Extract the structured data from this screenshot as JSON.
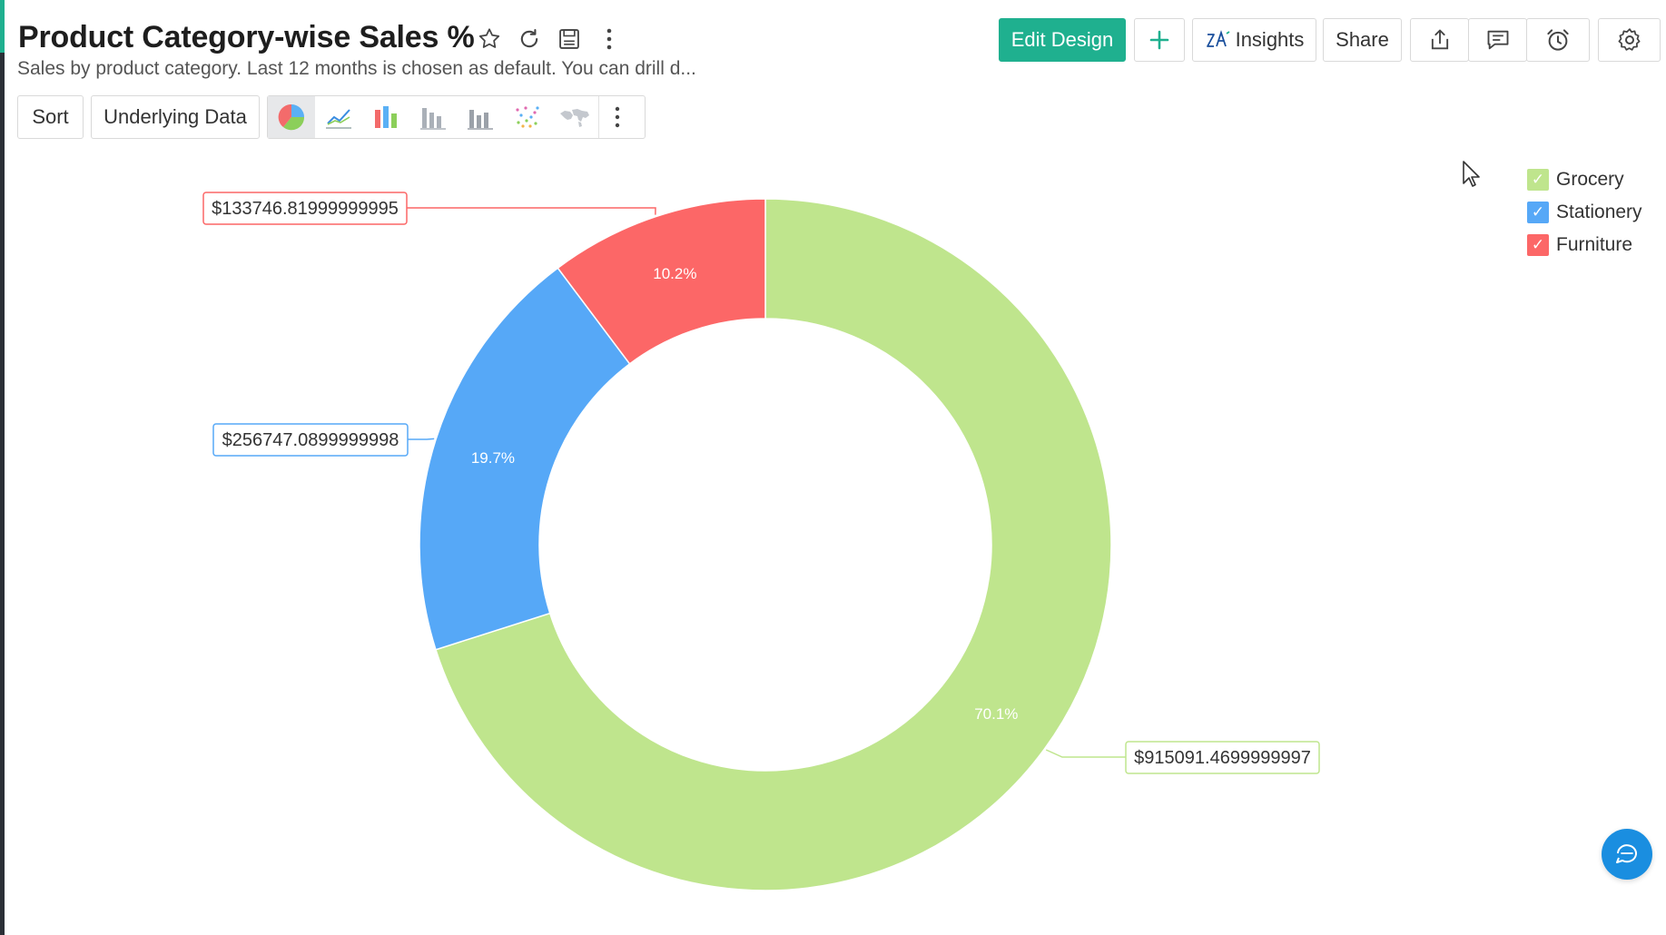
{
  "header": {
    "title": "Product Category-wise Sales %",
    "subtitle": "Sales by product category. Last 12 months is chosen as default. You can drill d..."
  },
  "actions": {
    "edit_design": "Edit Design",
    "add": "+",
    "insights": "Insights",
    "share": "Share"
  },
  "toolbar": {
    "sort": "Sort",
    "underlying_data": "Underlying Data",
    "chart_types": [
      "pie-chart-icon",
      "line-chart-icon",
      "bar-chart-icon",
      "column-chart-icon",
      "stacked-chart-icon",
      "scatter-chart-icon",
      "map-chart-icon"
    ],
    "active_chart_type": "pie-chart-icon"
  },
  "colors": {
    "accent": "#1fb08f",
    "grocery": "#bfe58d",
    "stationery": "#56a8f7",
    "furniture": "#fc6767"
  },
  "legend": [
    {
      "label": "Grocery",
      "color": "#bfe58d",
      "checked": true
    },
    {
      "label": "Stationery",
      "color": "#56a8f7",
      "checked": true
    },
    {
      "label": "Furniture",
      "color": "#fc6767",
      "checked": true
    }
  ],
  "chart_data": {
    "type": "pie",
    "variant": "donut",
    "categories": [
      "Grocery",
      "Stationery",
      "Furniture"
    ],
    "values": [
      915091.4699999997,
      256747.0899999998,
      133746.81999999995
    ],
    "percent_labels": [
      "70.1%",
      "19.7%",
      "10.2%"
    ],
    "value_labels": [
      "$915091.4699999997",
      "$256747.0899999998",
      "$133746.81999999995"
    ],
    "colors": [
      "#bfe58d",
      "#56a8f7",
      "#fc6767"
    ],
    "legend_position": "top-right"
  }
}
